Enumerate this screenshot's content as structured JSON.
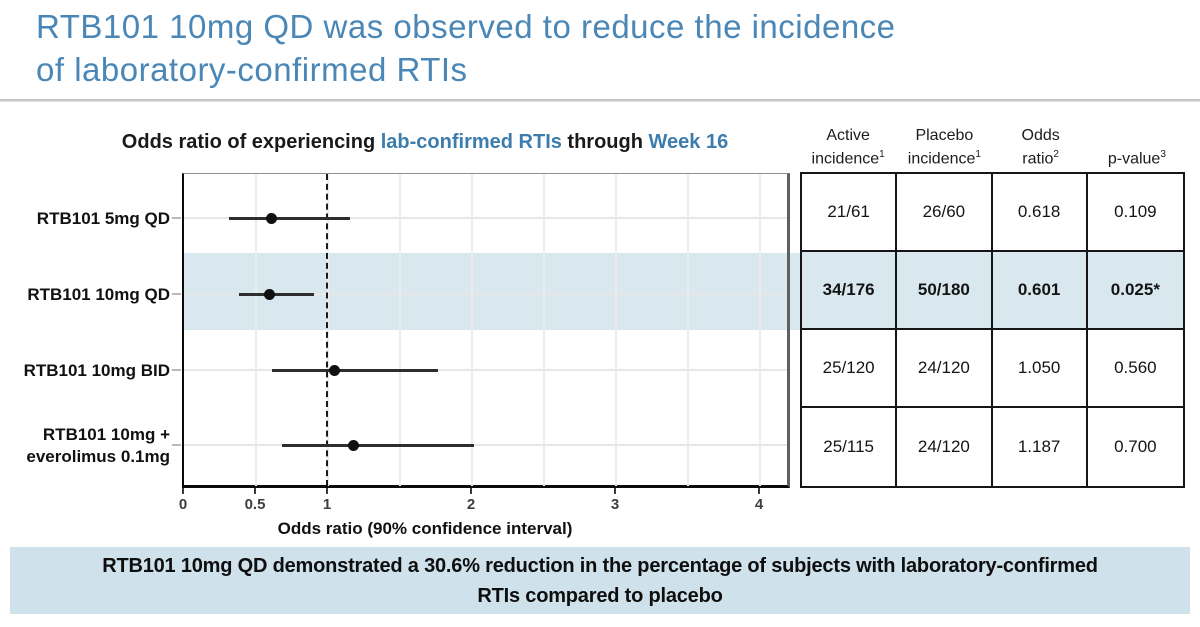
{
  "header": {
    "title_line1": "RTB101 10mg QD was observed to reduce the incidence",
    "title_line2": "of laboratory-confirmed RTIs"
  },
  "chart": {
    "title_parts": [
      {
        "text": "Odds ratio of experiencing ",
        "accent": false
      },
      {
        "text": "lab-confirmed RTIs",
        "accent": true
      },
      {
        "text": " through ",
        "accent": false
      },
      {
        "text": "Week 16",
        "accent": true
      }
    ]
  },
  "chart_data": {
    "type": "forest-dot-ci",
    "title": "Odds ratio of experiencing lab-confirmed RTIs through Week 16",
    "xlabel": "Odds ratio (90% confidence interval)",
    "x_range": [
      0,
      4.25
    ],
    "grid": true,
    "reference_line": 1,
    "x_ticks": [
      {
        "value": 0,
        "label": "0"
      },
      {
        "value": 0.5,
        "label": "0.5"
      },
      {
        "value": 1,
        "label": "1"
      },
      {
        "value": 2,
        "label": "2"
      },
      {
        "value": 3,
        "label": "3"
      },
      {
        "value": 4,
        "label": "4"
      }
    ],
    "grid_values": [
      0.5,
      1,
      1.5,
      2,
      2.5,
      3,
      3.5,
      4
    ],
    "rows": [
      {
        "label_lines": [
          "RTB101 5mg QD"
        ],
        "or": 0.618,
        "ci_low": 0.32,
        "ci_high": 1.16,
        "highlight": false
      },
      {
        "label_lines": [
          "RTB101 10mg QD"
        ],
        "or": 0.601,
        "ci_low": 0.39,
        "ci_high": 0.91,
        "highlight": true
      },
      {
        "label_lines": [
          "RTB101 10mg BID"
        ],
        "or": 1.05,
        "ci_low": 0.62,
        "ci_high": 1.77,
        "highlight": false
      },
      {
        "label_lines": [
          "RTB101 10mg +",
          "everolimus 0.1mg"
        ],
        "or": 1.187,
        "ci_low": 0.69,
        "ci_high": 2.02,
        "highlight": false
      }
    ]
  },
  "table": {
    "headers": [
      {
        "lines": [
          "Active",
          "incidence"
        ],
        "sup": "1"
      },
      {
        "lines": [
          "Placebo",
          "incidence"
        ],
        "sup": "1"
      },
      {
        "lines": [
          "Odds",
          "ratio"
        ],
        "sup": "2"
      },
      {
        "lines": [
          "p-value"
        ],
        "sup": "3"
      }
    ],
    "rows": [
      {
        "cells": [
          "21/61",
          "26/60",
          "0.618",
          "0.109"
        ],
        "highlight": false
      },
      {
        "cells": [
          "34/176",
          "50/180",
          "0.601",
          "0.025*"
        ],
        "highlight": true
      },
      {
        "cells": [
          "25/120",
          "24/120",
          "1.050",
          "0.560"
        ],
        "highlight": false
      },
      {
        "cells": [
          "25/115",
          "24/120",
          "1.187",
          "0.700"
        ],
        "highlight": false
      }
    ]
  },
  "banner": {
    "line1": "RTB101 10mg QD demonstrated a 30.6% reduction in the percentage of subjects with laboratory-confirmed",
    "line2": "RTIs compared to placebo"
  },
  "colors": {
    "title_blue": "#4a87b6",
    "accent_blue": "#3c7dad",
    "highlight_fill": "#d9e7ef",
    "banner_bg": "#cfe2ec"
  }
}
